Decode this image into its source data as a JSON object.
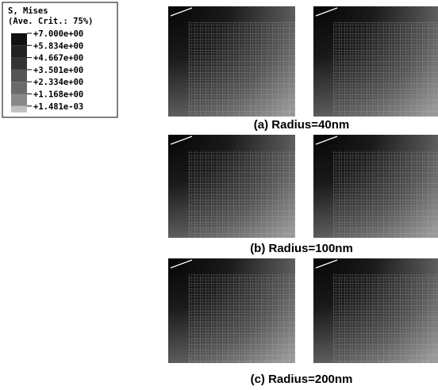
{
  "legend": {
    "title": "S, Mises",
    "subtitle": "(Ave. Crit.: 75%)",
    "values": [
      "+7.000e+00",
      "+5.834e+00",
      "+4.667e+00",
      "+3.501e+00",
      "+2.334e+00",
      "+1.168e+00",
      "+1.481e-03"
    ]
  },
  "captions": [
    "(a) Radius=40nm",
    "(b) Radius=100nm",
    "(c) Radius=200nm"
  ]
}
